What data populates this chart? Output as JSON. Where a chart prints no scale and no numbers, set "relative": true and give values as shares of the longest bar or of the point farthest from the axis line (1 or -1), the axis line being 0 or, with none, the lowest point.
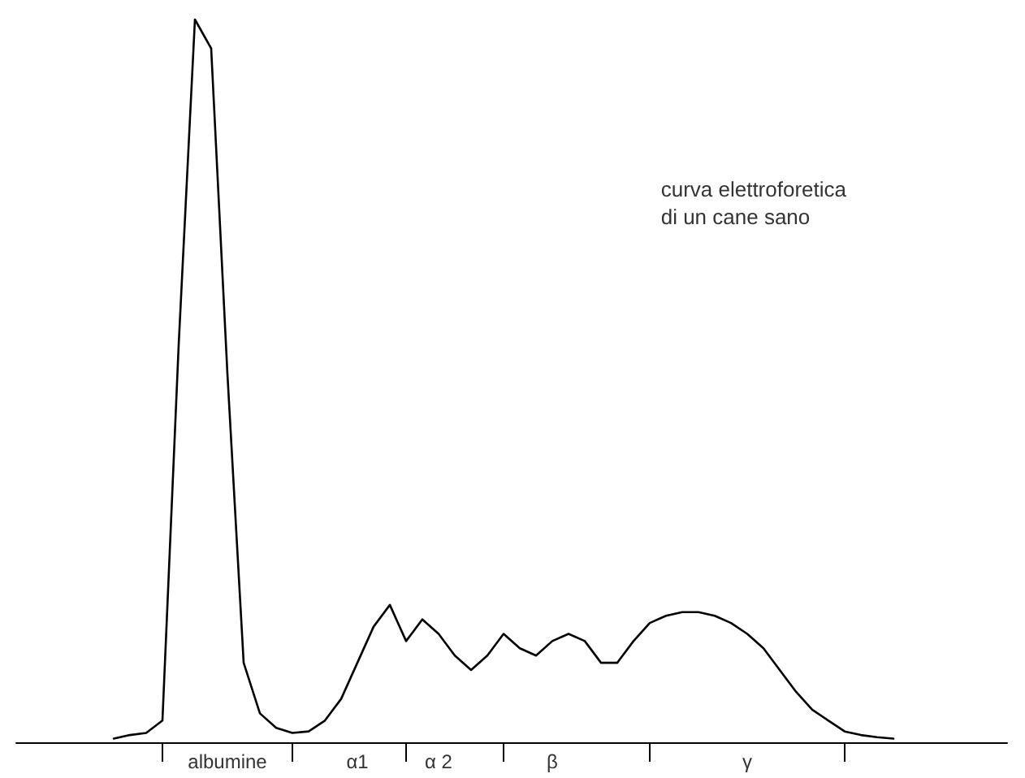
{
  "chart_data": {
    "type": "line",
    "relative": true,
    "color": "#000000",
    "marker": "none",
    "grid": false,
    "categories": [
      null,
      null,
      null,
      null,
      null,
      null,
      null,
      null,
      null,
      null,
      null,
      null,
      null,
      "albumine",
      null,
      null,
      null,
      null,
      null,
      null,
      null,
      "α1",
      null,
      null,
      null,
      null,
      "α 2",
      null,
      null,
      null,
      null,
      null,
      null,
      "β",
      null,
      null,
      null,
      null,
      null,
      null,
      null,
      null,
      null,
      null,
      null,
      "γ",
      null,
      null,
      null,
      null,
      null,
      null,
      null,
      null,
      null,
      null,
      null,
      null,
      null,
      null,
      null,
      null
    ],
    "values": [
      null,
      null,
      null,
      null,
      null,
      null,
      0.005,
      0.01,
      0.013,
      0.03,
      0.55,
      1.0,
      0.96,
      0.51,
      0.11,
      0.04,
      0.02,
      0.013,
      0.015,
      0.03,
      0.06,
      0.11,
      0.16,
      0.19,
      0.14,
      0.17,
      0.15,
      0.12,
      0.1,
      0.12,
      0.15,
      0.13,
      0.12,
      0.14,
      0.15,
      0.14,
      0.11,
      0.11,
      0.14,
      0.165,
      0.175,
      0.18,
      0.18,
      0.175,
      0.165,
      0.15,
      0.13,
      0.1,
      0.07,
      0.045,
      0.03,
      0.015,
      0.01,
      0.007,
      0.005,
      null,
      null,
      null,
      null,
      null,
      null,
      null
    ],
    "annotations": [
      "curva elettroforetica\ndi un cane sano"
    ]
  }
}
